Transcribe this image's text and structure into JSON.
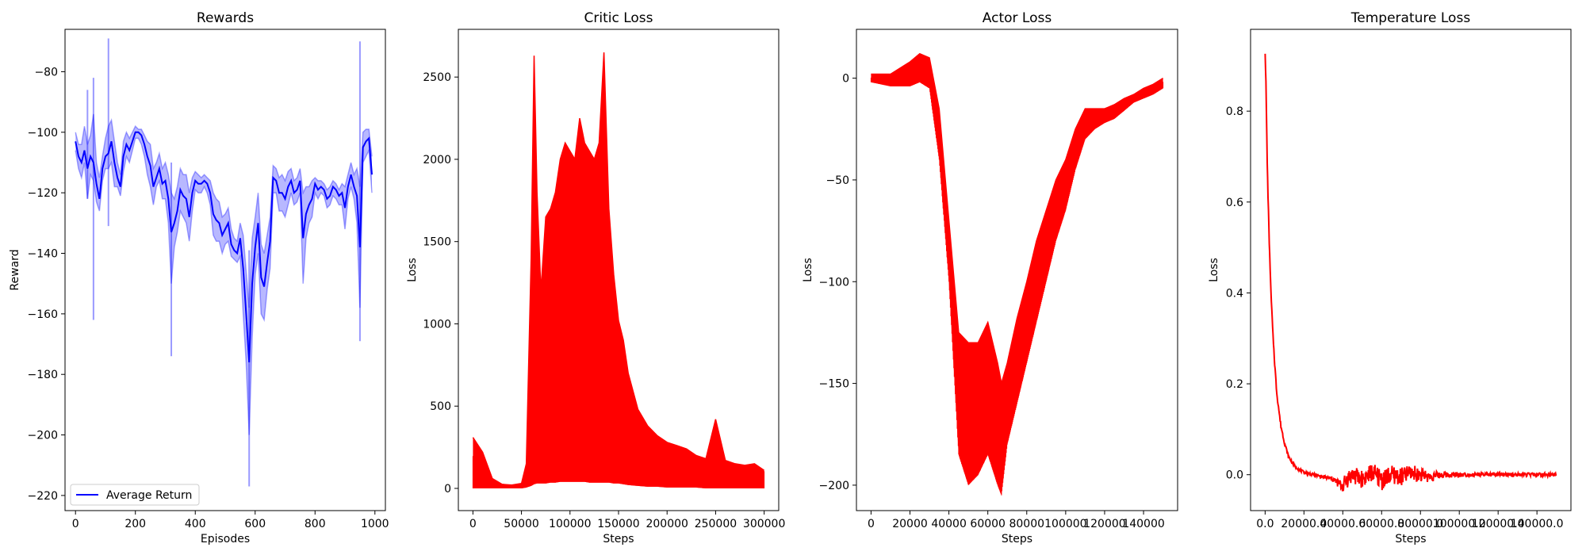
{
  "chart_data": [
    {
      "type": "line",
      "title": "Rewards",
      "xlabel": "Episodes",
      "ylabel": "Reward",
      "xlim": [
        -35,
        1035
      ],
      "ylim": [
        -225,
        -66
      ],
      "xticks": [
        0,
        200,
        400,
        600,
        800,
        1000
      ],
      "yticks": [
        -220,
        -200,
        -180,
        -160,
        -140,
        -120,
        -100,
        -80
      ],
      "grid": false,
      "legend": {
        "position": "lower-left",
        "entries": [
          "Average Return"
        ]
      },
      "colors": {
        "line": "#0000ff",
        "band": "#0000ff"
      },
      "series": [
        {
          "name": "Average Return",
          "x": [
            0,
            10,
            20,
            30,
            40,
            50,
            60,
            70,
            80,
            90,
            100,
            110,
            120,
            130,
            140,
            150,
            160,
            170,
            180,
            190,
            200,
            210,
            220,
            230,
            240,
            250,
            260,
            270,
            280,
            290,
            300,
            310,
            320,
            330,
            340,
            350,
            360,
            370,
            380,
            390,
            400,
            410,
            420,
            430,
            440,
            450,
            460,
            470,
            480,
            490,
            500,
            510,
            520,
            530,
            540,
            550,
            560,
            570,
            580,
            590,
            600,
            610,
            620,
            630,
            640,
            650,
            660,
            670,
            680,
            690,
            700,
            710,
            720,
            730,
            740,
            750,
            760,
            770,
            780,
            790,
            800,
            810,
            820,
            830,
            840,
            850,
            860,
            870,
            880,
            890,
            900,
            910,
            920,
            930,
            940,
            950,
            960,
            970,
            980,
            990
          ],
          "y": [
            -103,
            -108,
            -110,
            -106,
            -112,
            -108,
            -110,
            -117,
            -122,
            -112,
            -108,
            -107,
            -103,
            -110,
            -115,
            -118,
            -108,
            -104,
            -106,
            -103,
            -100,
            -100,
            -101,
            -104,
            -108,
            -111,
            -118,
            -115,
            -112,
            -117,
            -116,
            -122,
            -133,
            -130,
            -126,
            -119,
            -121,
            -122,
            -128,
            -120,
            -116,
            -117,
            -117,
            -116,
            -117,
            -120,
            -127,
            -129,
            -130,
            -134,
            -132,
            -130,
            -137,
            -139,
            -140,
            -135,
            -145,
            -160,
            -176,
            -150,
            -138,
            -130,
            -148,
            -151,
            -143,
            -136,
            -115,
            -116,
            -120,
            -120,
            -122,
            -118,
            -116,
            -120,
            -119,
            -116,
            -135,
            -127,
            -124,
            -122,
            -117,
            -119,
            -118,
            -119,
            -122,
            -121,
            -118,
            -119,
            -121,
            -120,
            -125,
            -118,
            -114,
            -118,
            -121,
            -138,
            -105,
            -103,
            -102,
            -114
          ]
        }
      ],
      "band_lower": [
        -106,
        -112,
        -115,
        -110,
        -122,
        -114,
        -116,
        -123,
        -126,
        -116,
        -112,
        -112,
        -110,
        -118,
        -118,
        -121,
        -113,
        -108,
        -110,
        -106,
        -102,
        -102,
        -104,
        -108,
        -114,
        -118,
        -124,
        -118,
        -116,
        -122,
        -122,
        -130,
        -150,
        -138,
        -133,
        -126,
        -128,
        -130,
        -136,
        -126,
        -119,
        -120,
        -120,
        -118,
        -120,
        -124,
        -134,
        -136,
        -136,
        -140,
        -137,
        -136,
        -141,
        -142,
        -143,
        -141,
        -160,
        -176,
        -200,
        -168,
        -147,
        -140,
        -160,
        -162,
        -152,
        -145,
        -120,
        -120,
        -126,
        -126,
        -128,
        -124,
        -120,
        -124,
        -123,
        -120,
        -150,
        -135,
        -130,
        -128,
        -120,
        -122,
        -120,
        -121,
        -125,
        -124,
        -121,
        -122,
        -124,
        -124,
        -132,
        -122,
        -118,
        -122,
        -130,
        -158,
        -110,
        -108,
        -106,
        -120
      ],
      "band_upper": [
        -100,
        -104,
        -104,
        -98,
        -104,
        -101,
        -94,
        -110,
        -115,
        -108,
        -102,
        -98,
        -96,
        -103,
        -110,
        -114,
        -103,
        -100,
        -102,
        -100,
        -98,
        -99,
        -99,
        -101,
        -103,
        -104,
        -112,
        -110,
        -107,
        -112,
        -110,
        -114,
        -120,
        -122,
        -118,
        -112,
        -114,
        -114,
        -120,
        -115,
        -113,
        -114,
        -115,
        -114,
        -115,
        -116,
        -120,
        -122,
        -123,
        -128,
        -127,
        -125,
        -132,
        -135,
        -136,
        -130,
        -134,
        -146,
        -158,
        -135,
        -128,
        -120,
        -137,
        -140,
        -134,
        -128,
        -111,
        -112,
        -115,
        -114,
        -116,
        -113,
        -112,
        -116,
        -115,
        -112,
        -120,
        -118,
        -118,
        -116,
        -115,
        -116,
        -116,
        -117,
        -119,
        -118,
        -116,
        -117,
        -119,
        -117,
        -118,
        -114,
        -110,
        -114,
        -112,
        -118,
        -100,
        -99,
        -99,
        -108
      ],
      "spikes": [
        {
          "x": 40,
          "lo": -122,
          "hi": -86
        },
        {
          "x": 60,
          "lo": -162,
          "hi": -82
        },
        {
          "x": 110,
          "lo": -131,
          "hi": -69
        },
        {
          "x": 320,
          "lo": -174,
          "hi": -110
        },
        {
          "x": 580,
          "lo": -217,
          "hi": -139
        },
        {
          "x": 950,
          "lo": -169,
          "hi": -70
        }
      ]
    },
    {
      "type": "line",
      "title": "Critic Loss",
      "xlabel": "Steps",
      "ylabel": "Loss",
      "xlim": [
        -15000,
        315000
      ],
      "ylim": [
        -135,
        2790
      ],
      "xticks": [
        0,
        50000,
        100000,
        150000,
        200000,
        250000,
        300000
      ],
      "yticks": [
        0,
        500,
        1000,
        1500,
        2000,
        2500
      ],
      "grid": false,
      "colors": {
        "line": "#ff0000"
      },
      "series": [
        {
          "x": [
            0,
            10000,
            20000,
            30000,
            40000,
            50000,
            55000,
            60000,
            63000,
            66000,
            70000,
            75000,
            80000,
            85000,
            90000,
            95000,
            100000,
            105000,
            110000,
            115000,
            120000,
            125000,
            130000,
            135000,
            140000,
            145000,
            150000,
            155000,
            160000,
            170000,
            180000,
            190000,
            200000,
            210000,
            220000,
            230000,
            240000,
            250000,
            260000,
            270000,
            280000,
            290000,
            300000
          ],
          "y_upper": [
            310,
            220,
            60,
            25,
            20,
            30,
            150,
            1400,
            2630,
            1800,
            1200,
            1650,
            1700,
            1800,
            2000,
            2100,
            2050,
            2000,
            2250,
            2100,
            2050,
            2000,
            2100,
            2650,
            1700,
            1300,
            1020,
            900,
            700,
            480,
            380,
            320,
            280,
            260,
            240,
            200,
            180,
            420,
            170,
            150,
            140,
            150,
            110
          ],
          "y_lower": [
            0,
            0,
            0,
            0,
            0,
            0,
            5,
            15,
            25,
            30,
            30,
            30,
            35,
            35,
            40,
            40,
            40,
            40,
            40,
            40,
            35,
            35,
            35,
            35,
            35,
            30,
            30,
            25,
            20,
            15,
            10,
            10,
            5,
            5,
            5,
            5,
            0,
            0,
            0,
            0,
            0,
            0,
            0
          ]
        }
      ]
    },
    {
      "type": "line",
      "title": "Actor Loss",
      "xlabel": "Steps",
      "ylabel": "Loss",
      "xlim": [
        -7500,
        157500
      ],
      "ylim": [
        -212.5,
        24
      ],
      "xticks": [
        0,
        20000,
        40000,
        60000,
        80000,
        100000,
        120000,
        140000
      ],
      "yticks": [
        -200,
        -150,
        -100,
        -50,
        0
      ],
      "grid": false,
      "colors": {
        "line": "#ff0000"
      },
      "series": [
        {
          "x": [
            0,
            10000,
            20000,
            25000,
            30000,
            35000,
            40000,
            45000,
            50000,
            55000,
            60000,
            65000,
            67000,
            70000,
            75000,
            80000,
            85000,
            90000,
            95000,
            100000,
            105000,
            110000,
            115000,
            120000,
            125000,
            130000,
            135000,
            140000,
            145000,
            150000
          ],
          "y_upper": [
            2,
            2,
            8,
            12,
            10,
            -15,
            -70,
            -125,
            -130,
            -130,
            -120,
            -140,
            -150,
            -140,
            -118,
            -100,
            -80,
            -65,
            -50,
            -40,
            -25,
            -15,
            -15,
            -15,
            -13,
            -10,
            -8,
            -5,
            -3,
            0
          ],
          "y_lower": [
            -2,
            -4,
            -4,
            -2,
            -5,
            -40,
            -100,
            -185,
            -200,
            -195,
            -185,
            -200,
            -205,
            -180,
            -160,
            -140,
            -120,
            -100,
            -80,
            -65,
            -45,
            -30,
            -25,
            -22,
            -20,
            -16,
            -12,
            -10,
            -8,
            -5
          ]
        }
      ]
    },
    {
      "type": "line",
      "title": "Temperature Loss",
      "xlabel": "Steps",
      "ylabel": "Loss",
      "xlim": [
        -7500,
        157500
      ],
      "ylim": [
        -0.079,
        0.98
      ],
      "xticks": [
        0,
        20000,
        40000,
        60000,
        80000,
        100000,
        120000,
        140000
      ],
      "yticks": [
        0.0,
        0.2,
        0.4,
        0.6,
        0.8
      ],
      "grid": false,
      "colors": {
        "line": "#ff0000"
      },
      "series": [
        {
          "x": [
            0,
            500,
            1000,
            2000,
            3000,
            4000,
            5000,
            6000,
            8000,
            10000,
            12000,
            15000,
            18000,
            20000,
            25000,
            30000,
            35000,
            38000,
            40000,
            42000,
            45000,
            50000,
            55000,
            60000,
            65000,
            70000,
            75000,
            80000,
            85000,
            90000,
            100000,
            110000,
            120000,
            130000,
            140000,
            150000
          ],
          "y": [
            0.93,
            0.85,
            0.7,
            0.53,
            0.4,
            0.31,
            0.24,
            0.18,
            0.11,
            0.07,
            0.04,
            0.02,
            0.01,
            0.005,
            0.0,
            -0.005,
            -0.01,
            -0.02,
            -0.025,
            -0.01,
            0.0,
            -0.01,
            0.005,
            -0.01,
            0.0,
            -0.005,
            0.005,
            0.0,
            -0.005,
            0.0,
            0.0,
            0.0,
            0.0,
            0.0,
            0.0,
            0.0
          ],
          "noise": [
            0.005,
            0.005,
            0.005,
            0.005,
            0.005,
            0.005,
            0.005,
            0.005,
            0.005,
            0.004,
            0.004,
            0.003,
            0.003,
            0.003,
            0.003,
            0.004,
            0.006,
            0.01,
            0.015,
            0.02,
            0.02,
            0.02,
            0.02,
            0.025,
            0.02,
            0.02,
            0.018,
            0.015,
            0.012,
            0.008,
            0.005,
            0.004,
            0.004,
            0.004,
            0.004,
            0.004
          ]
        }
      ]
    }
  ]
}
